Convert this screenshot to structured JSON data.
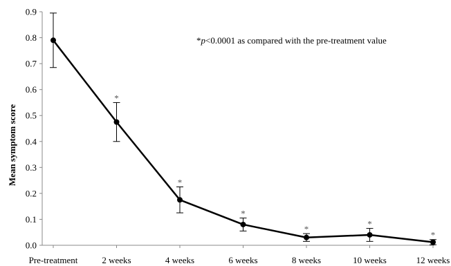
{
  "chart_data": {
    "type": "line",
    "title": "",
    "xlabel": "",
    "ylabel": "Mean symptom score",
    "ylim": [
      0,
      0.9
    ],
    "yticks": [
      "0.0",
      "0.1",
      "0.2",
      "0.3",
      "0.4",
      "0.5",
      "0.6",
      "0.7",
      "0.8",
      "0.9"
    ],
    "categories": [
      "Pre-treatment",
      "2 weeks",
      "4 weeks",
      "6 weeks",
      "8 weeks",
      "10 weeks",
      "12 weeks"
    ],
    "series": [
      {
        "values": [
          0.79,
          0.475,
          0.175,
          0.08,
          0.03,
          0.04,
          0.012
        ],
        "error": [
          0.105,
          0.075,
          0.05,
          0.025,
          0.015,
          0.025,
          0.01
        ],
        "significant": [
          false,
          true,
          true,
          true,
          true,
          true,
          true
        ]
      }
    ],
    "significance_marker": "*",
    "annotation": {
      "marker": "*",
      "p": "p",
      "text": "<0.0001 as compared with the pre-treatment value"
    },
    "grid": false,
    "legend": "none"
  }
}
